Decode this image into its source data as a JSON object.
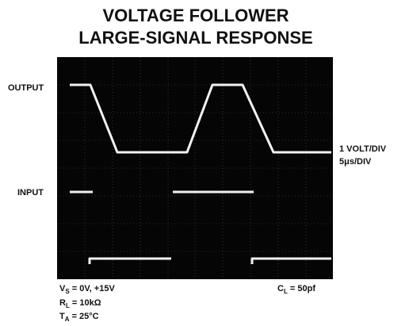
{
  "title": [
    "VOLTAGE FOLLOWER",
    "LARGE-SIGNAL RESPONSE"
  ],
  "traces": {
    "output": "OUTPUT",
    "input": "INPUT"
  },
  "scales": [
    "1 VOLT/DIV",
    "5μs/DIV"
  ],
  "conditions": [
    {
      "symbol": "V",
      "subscript": "S",
      "text": " = 0V, +15V"
    },
    {
      "symbol": "R",
      "subscript": "L",
      "text": " = 10kΩ"
    },
    {
      "symbol": "T",
      "subscript": "A",
      "text": " = 25°C"
    }
  ],
  "load": {
    "symbol": "C",
    "subscript": "L",
    "text": " = 50pf"
  }
}
